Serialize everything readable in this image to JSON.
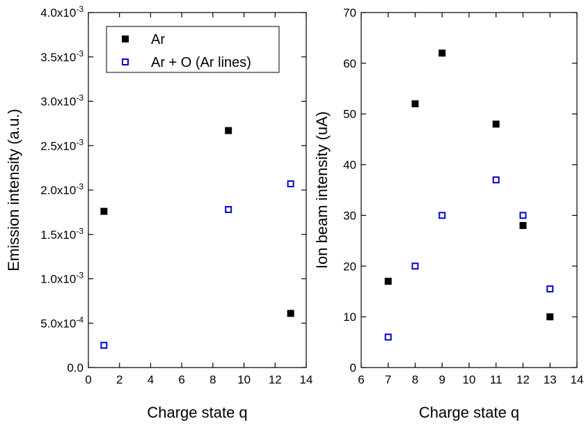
{
  "chart_data": [
    {
      "type": "scatter",
      "title": "",
      "xlabel": "Charge state q",
      "ylabel": "Emission intensity (a.u.)",
      "xlim": [
        0,
        14
      ],
      "ylim": [
        0,
        0.004
      ],
      "x_ticks": [
        0,
        2,
        4,
        6,
        8,
        10,
        12,
        14
      ],
      "x_tick_labels": [
        "0",
        "2",
        "4",
        "6",
        "8",
        "10",
        "12",
        "14"
      ],
      "y_ticks": [
        0,
        0.0005,
        0.001,
        0.0015,
        0.002,
        0.0025,
        0.003,
        0.0035,
        0.004
      ],
      "y_tick_labels": [
        {
          "mant": "0.0",
          "exp": ""
        },
        {
          "mant": "5.0x10",
          "exp": "-4"
        },
        {
          "mant": "1.0x10",
          "exp": "-3"
        },
        {
          "mant": "1.5x10",
          "exp": "-3"
        },
        {
          "mant": "2.0x10",
          "exp": "-3"
        },
        {
          "mant": "2.5x10",
          "exp": "-3"
        },
        {
          "mant": "3.0x10",
          "exp": "-3"
        },
        {
          "mant": "3.5x10",
          "exp": "-3"
        },
        {
          "mant": "4.0x10",
          "exp": "-3"
        }
      ],
      "legend": {
        "placement": "top-left",
        "entries": [
          {
            "label": "Ar",
            "marker": "filled-square",
            "color": "#000000"
          },
          {
            "label": "Ar + O (Ar lines)",
            "marker": "open-square",
            "color": "#0000cc"
          }
        ]
      },
      "series": [
        {
          "name": "Ar",
          "marker": "filled-square",
          "color": "#000000",
          "x": [
            1,
            9,
            13
          ],
          "y": [
            0.00176,
            0.00267,
            0.00061
          ]
        },
        {
          "name": "Ar + O (Ar lines)",
          "marker": "open-square",
          "color": "#0000cc",
          "x": [
            1,
            9,
            13
          ],
          "y": [
            0.00025,
            0.00178,
            0.00207
          ]
        }
      ]
    },
    {
      "type": "scatter",
      "title": "",
      "xlabel": "Charge state q",
      "ylabel": "Ion beam intensity (uA)",
      "xlim": [
        6,
        14
      ],
      "ylim": [
        0,
        70
      ],
      "x_ticks": [
        6,
        7,
        8,
        9,
        10,
        11,
        12,
        13,
        14
      ],
      "x_tick_labels": [
        "6",
        "7",
        "8",
        "9",
        "10",
        "11",
        "12",
        "13",
        "14"
      ],
      "y_ticks": [
        0,
        10,
        20,
        30,
        40,
        50,
        60,
        70
      ],
      "y_tick_labels": [
        "0",
        "10",
        "20",
        "30",
        "40",
        "50",
        "60",
        "70"
      ],
      "series": [
        {
          "name": "Ar",
          "marker": "filled-square",
          "color": "#000000",
          "x": [
            7,
            8,
            9,
            11,
            12,
            13
          ],
          "y": [
            17,
            52,
            62,
            48,
            28,
            10
          ]
        },
        {
          "name": "Ar + O (Ar lines)",
          "marker": "open-square",
          "color": "#0000cc",
          "x": [
            7,
            8,
            9,
            11,
            12,
            13
          ],
          "y": [
            6,
            20,
            30,
            37,
            30,
            15.5
          ]
        }
      ]
    }
  ]
}
